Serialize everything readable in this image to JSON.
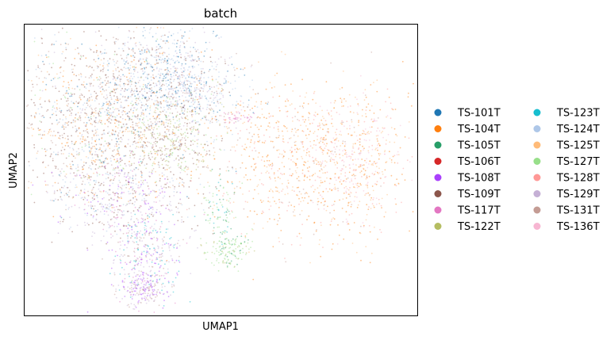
{
  "chart_data": {
    "type": "scatter",
    "title": "batch",
    "xlabel": "UMAP1",
    "ylabel": "UMAP2",
    "xticks": [],
    "yticks": [],
    "grid": false,
    "legend": {
      "position": "right",
      "columns": 2,
      "entries": [
        {
          "name": "TS-101T",
          "color": "#1f77b4"
        },
        {
          "name": "TS-104T",
          "color": "#ff7f0e"
        },
        {
          "name": "TS-105T",
          "color": "#279e68"
        },
        {
          "name": "TS-106T",
          "color": "#d62728"
        },
        {
          "name": "TS-108T",
          "color": "#aa40fc"
        },
        {
          "name": "TS-109T",
          "color": "#8c564b"
        },
        {
          "name": "TS-117T",
          "color": "#e377c2"
        },
        {
          "name": "TS-122T",
          "color": "#b5bd61"
        },
        {
          "name": "TS-123T",
          "color": "#17becf"
        },
        {
          "name": "TS-124T",
          "color": "#aec7e8"
        },
        {
          "name": "TS-125T",
          "color": "#ffbb78"
        },
        {
          "name": "TS-127T",
          "color": "#98df8a"
        },
        {
          "name": "TS-128T",
          "color": "#ff9896"
        },
        {
          "name": "TS-129T",
          "color": "#c5b0d5"
        },
        {
          "name": "TS-131T",
          "color": "#c49c94"
        },
        {
          "name": "TS-136T",
          "color": "#f7b6d2"
        }
      ]
    }
  }
}
